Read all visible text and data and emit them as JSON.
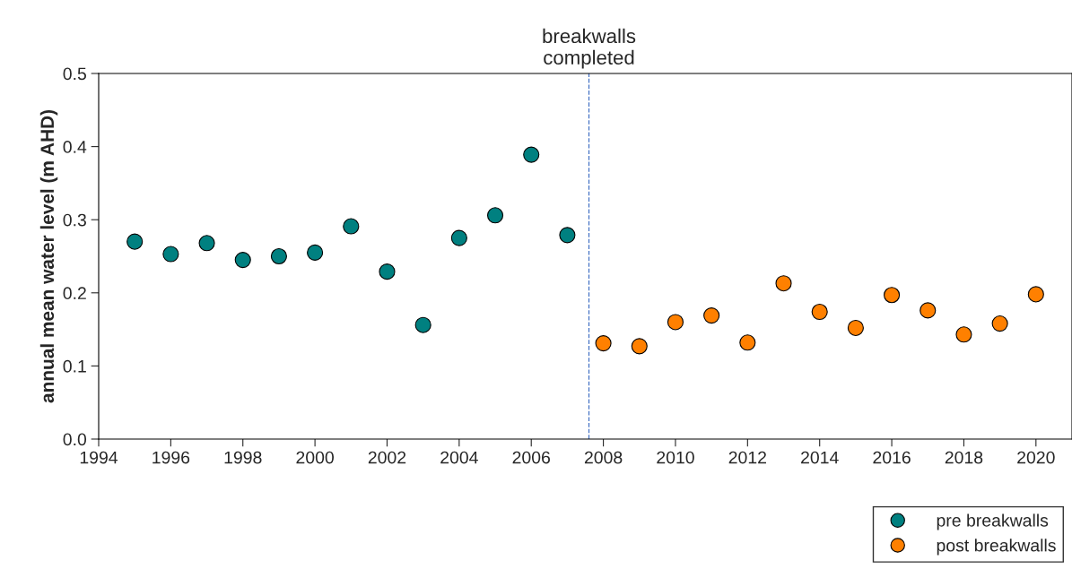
{
  "chart_data": {
    "type": "scatter",
    "ylabel": "annual mean water level (m AHD)",
    "xlim": [
      1994,
      2021
    ],
    "xticks": [
      1994,
      1996,
      1998,
      2000,
      2002,
      2004,
      2006,
      2008,
      2010,
      2012,
      2014,
      2016,
      2018,
      2020
    ],
    "ylim": [
      0,
      0.5
    ],
    "yticks": [
      {
        "value": 0,
        "label": "0.0"
      },
      0.1,
      0.2,
      0.3,
      0.4,
      0.5
    ],
    "grid": false,
    "legend": "bottom right",
    "marker": "circle",
    "ref_lines": [
      {
        "axis": "x",
        "value": 2007.6,
        "label": "breakwalls\ncompleted",
        "color": "#4472c4",
        "line_style": "dashed"
      }
    ],
    "series": [
      {
        "name": "pre breakwalls",
        "color": "#008080",
        "x": [
          1995,
          1996,
          1997,
          1998,
          1999,
          2000,
          2001,
          2002,
          2003,
          2004,
          2005,
          2006,
          2007
        ],
        "values": [
          0.27,
          0.253,
          0.268,
          0.245,
          0.25,
          0.255,
          0.291,
          0.229,
          0.156,
          0.275,
          0.306,
          0.389,
          0.279
        ]
      },
      {
        "name": "post breakwalls",
        "color": "#ff8000",
        "x": [
          2008,
          2009,
          2010,
          2011,
          2012,
          2013,
          2014,
          2015,
          2016,
          2017,
          2018,
          2019,
          2020
        ],
        "values": [
          0.131,
          0.127,
          0.16,
          0.169,
          0.132,
          0.213,
          0.174,
          0.152,
          0.197,
          0.176,
          0.143,
          0.158,
          0.198
        ]
      }
    ]
  }
}
